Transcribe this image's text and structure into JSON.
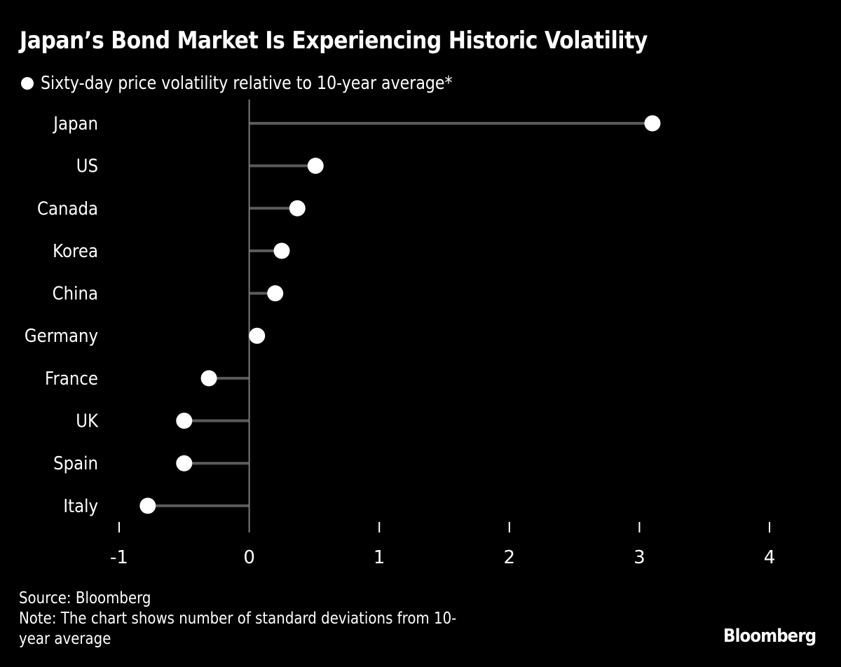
{
  "chart_data": {
    "type": "lollipop",
    "title": "Japan’s Bond Market Is Experiencing Historic Volatility",
    "legend": [
      {
        "name": "Sixty-day price volatility relative to 10-year average*",
        "color": "#ffffff",
        "marker": "circle"
      }
    ],
    "legend_position": "top-left",
    "categories": [
      "Japan",
      "US",
      "Canada",
      "Korea",
      "China",
      "Germany",
      "France",
      "UK",
      "Spain",
      "Italy"
    ],
    "values": [
      3.1,
      0.51,
      0.37,
      0.25,
      0.2,
      0.06,
      -0.31,
      -0.5,
      -0.5,
      -0.78
    ],
    "xlim": [
      -1,
      4
    ],
    "xticks": [
      -1,
      0,
      1,
      2,
      3,
      4
    ],
    "xtick_labels": [
      "-1",
      "0",
      "1",
      "2",
      "3",
      "4"
    ],
    "xlabel": "",
    "ylabel": "",
    "grid": false,
    "colors": {
      "background": "#000000",
      "marker": "#ffffff",
      "stem": "#5a5a5a",
      "axis": "#7a7a7a",
      "text": "#ffffff"
    }
  },
  "footer": {
    "source": "Source: Bloomberg",
    "note_line1": "Note: The chart shows number of standard deviations from 10-",
    "note_line2": "year average"
  },
  "brand": "Bloomberg"
}
